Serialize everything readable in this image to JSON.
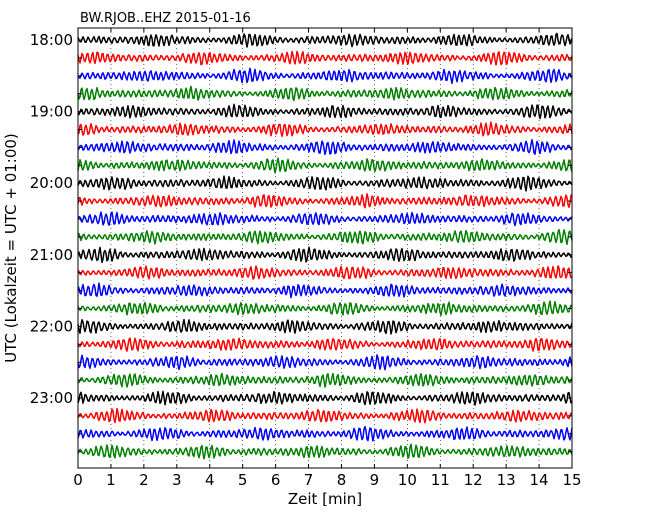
{
  "chart_data": {
    "type": "line",
    "title": "BW.RJOB..EHZ 2015-01-16",
    "xlabel": "Zeit  [min]",
    "ylabel": "UTC (Lokalzeit = UTC + 01:00)",
    "xlim": [
      0,
      15
    ],
    "x_ticks": [
      "0",
      "1",
      "2",
      "3",
      "4",
      "5",
      "6",
      "7",
      "8",
      "9",
      "10",
      "11",
      "12",
      "13",
      "14",
      "15"
    ],
    "y_tick_labels": [
      "18:00",
      "19:00",
      "20:00",
      "21:00",
      "22:00",
      "23:00"
    ],
    "row_minutes": 15,
    "grid": "vertical dotted lines at each minute",
    "series_colors": [
      "#000000",
      "#ff0000",
      "#0000ff",
      "#008000"
    ],
    "rows": [
      {
        "start": "18:00"
      },
      {
        "start": "18:15"
      },
      {
        "start": "18:30"
      },
      {
        "start": "18:45"
      },
      {
        "start": "19:00"
      },
      {
        "start": "19:15"
      },
      {
        "start": "19:30"
      },
      {
        "start": "19:45"
      },
      {
        "start": "20:00"
      },
      {
        "start": "20:15"
      },
      {
        "start": "20:30"
      },
      {
        "start": "20:45"
      },
      {
        "start": "21:00"
      },
      {
        "start": "21:15"
      },
      {
        "start": "21:30"
      },
      {
        "start": "21:45"
      },
      {
        "start": "22:00"
      },
      {
        "start": "22:15"
      },
      {
        "start": "22:30"
      },
      {
        "start": "22:45"
      },
      {
        "start": "23:00"
      },
      {
        "start": "23:15"
      },
      {
        "start": "23:30"
      },
      {
        "start": "23:45"
      }
    ]
  }
}
